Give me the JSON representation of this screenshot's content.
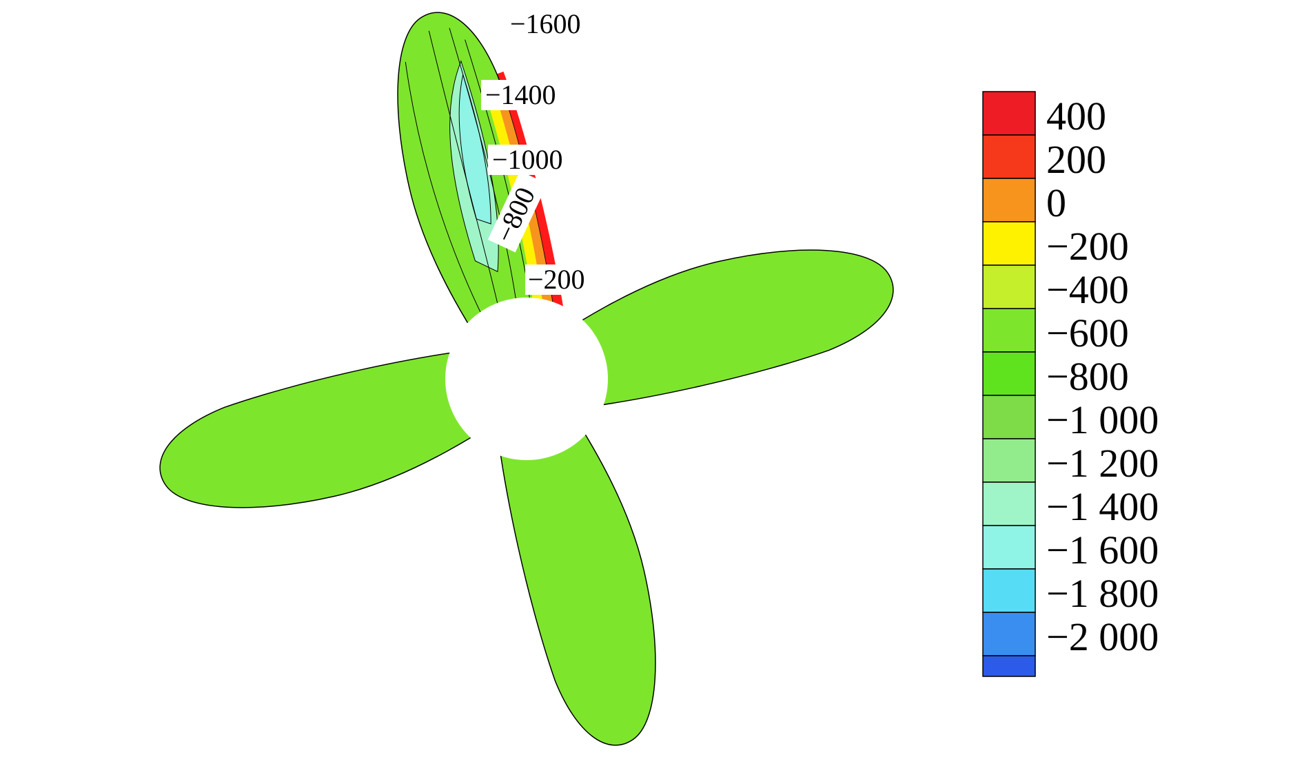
{
  "figure": {
    "colors": {
      "background": "#ffffff",
      "contour_line": "#000000",
      "leading_edge": "#ff1a1a"
    }
  },
  "legend": {
    "levels": [
      {
        "value": 400,
        "label": "400",
        "color": "#ee1c24"
      },
      {
        "value": 200,
        "label": "200",
        "color": "#f5391a"
      },
      {
        "value": 0,
        "label": "0",
        "color": "#f7941d"
      },
      {
        "value": -200,
        "label": "−200",
        "color": "#fff200"
      },
      {
        "value": -400,
        "label": "−400",
        "color": "#c5ef2a"
      },
      {
        "value": -600,
        "label": "−600",
        "color": "#7ee52d"
      },
      {
        "value": -800,
        "label": "−800",
        "color": "#5fe31e"
      },
      {
        "value": -1000,
        "label": "−1 000",
        "color": "#7ddc48"
      },
      {
        "value": -1200,
        "label": "−1 200",
        "color": "#93ec8c"
      },
      {
        "value": -1400,
        "label": "−1 400",
        "color": "#9ff5c8"
      },
      {
        "value": -1600,
        "label": "−1 600",
        "color": "#8ff3e6"
      },
      {
        "value": -1800,
        "label": "−1 800",
        "color": "#57dcf5"
      },
      {
        "value": -2000,
        "label": "−2 000",
        "color": "#3a8ef0"
      }
    ],
    "bottom_color": "#2b5be8"
  },
  "contour_labels": [
    {
      "text": "−1600"
    },
    {
      "text": "−1400"
    },
    {
      "text": "−1000"
    },
    {
      "text": "−800"
    },
    {
      "text": "−200"
    }
  ]
}
